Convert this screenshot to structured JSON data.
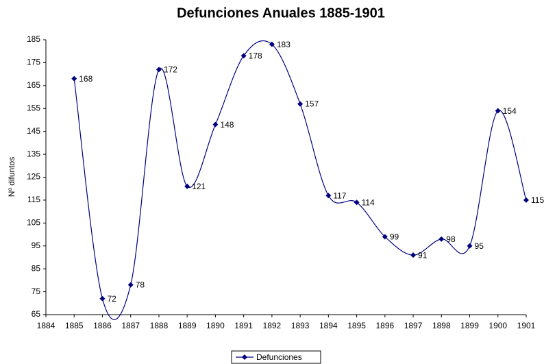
{
  "chart_data": {
    "type": "line",
    "title": "Defunciones Anuales 1885-1901",
    "y_label": "Nº difuntos",
    "x": [
      1885,
      1886,
      1887,
      1888,
      1889,
      1890,
      1891,
      1892,
      1893,
      1894,
      1895,
      1896,
      1897,
      1898,
      1899,
      1900,
      1901
    ],
    "series": [
      {
        "name": "Defunciones",
        "color": "#000080",
        "values": [
          168,
          72,
          78,
          172,
          121,
          148,
          178,
          183,
          157,
          117,
          114,
          99,
          91,
          98,
          95,
          154,
          115
        ]
      }
    ],
    "xlim": [
      1884,
      1901
    ],
    "xticks": [
      1884,
      1885,
      1886,
      1887,
      1888,
      1889,
      1890,
      1891,
      1892,
      1893,
      1894,
      1895,
      1896,
      1897,
      1898,
      1899,
      1900,
      1901
    ],
    "ylim": [
      65,
      185
    ],
    "yticks": [
      65,
      75,
      85,
      95,
      105,
      115,
      125,
      135,
      145,
      155,
      165,
      175,
      185
    ],
    "grid": false,
    "smooth": true,
    "legend": "bottom"
  }
}
